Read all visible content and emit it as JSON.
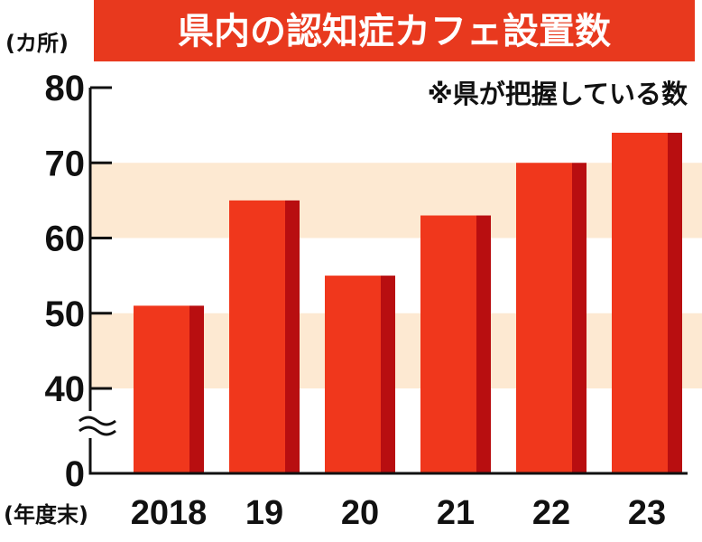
{
  "title": "県内の認知症カフェ設置数",
  "y_unit": "(カ所)",
  "note": "※県が把握している数",
  "x_unit": "(年度末)",
  "colors": {
    "bar": "#f0371c",
    "bar_side": "#b80e10",
    "title_bg": "#e8391e",
    "band": "#fde9d2"
  },
  "chart_data": {
    "type": "bar",
    "title": "県内の認知症カフェ設置数",
    "ylabel": "(カ所)",
    "xlabel": "(年度末)",
    "categories": [
      "2018",
      "19",
      "20",
      "21",
      "22",
      "23"
    ],
    "values": [
      51,
      65,
      55,
      63,
      70,
      74
    ],
    "ylim": [
      0,
      80
    ],
    "axis_break": true,
    "yticks": [
      "80",
      "70",
      "60",
      "50",
      "40",
      "0"
    ],
    "grid": false
  }
}
